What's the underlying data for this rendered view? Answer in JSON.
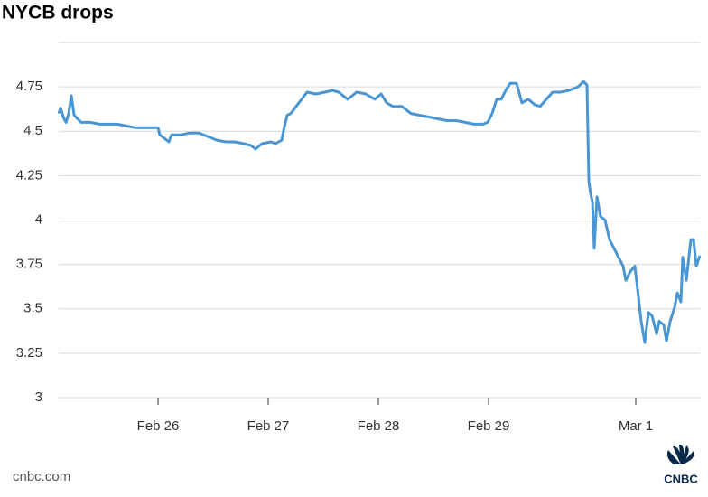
{
  "chart_data": {
    "type": "line",
    "title": "NYCB drops",
    "source": "cnbc.com",
    "logo": "CNBC",
    "x": [
      0.098,
      0.115,
      0.139,
      0.164,
      0.189,
      0.213,
      0.238,
      0.27,
      0.303,
      0.385,
      0.467,
      0.549,
      0.631,
      0.713,
      0.795,
      0.877,
      0.959,
      1.0,
      1.016,
      1.057,
      1.098,
      1.123,
      1.205,
      1.287,
      1.369,
      1.451,
      1.533,
      1.615,
      1.697,
      1.779,
      1.844,
      1.885,
      1.943,
      2.025,
      2.066,
      2.123,
      2.148,
      2.172,
      2.205,
      2.254,
      2.303,
      2.352,
      2.434,
      2.516,
      2.582,
      2.639,
      2.721,
      2.803,
      2.885,
      2.967,
      3.025,
      3.074,
      3.131,
      3.213,
      3.295,
      3.377,
      3.459,
      3.541,
      3.623,
      3.705,
      3.787,
      3.869,
      3.951,
      3.992,
      4.033,
      4.074,
      4.115,
      4.156,
      4.197,
      4.254,
      4.303,
      4.361,
      4.418,
      4.467,
      4.525,
      4.582,
      4.648,
      4.73,
      4.811,
      4.861,
      4.893,
      4.91,
      4.926,
      4.943,
      4.959,
      4.984,
      5.016,
      5.057,
      5.098,
      5.139,
      5.18,
      5.221,
      5.246,
      5.287,
      5.328,
      5.352,
      5.385,
      5.418,
      5.451,
      5.484,
      5.525,
      5.549,
      5.59,
      5.615,
      5.648,
      5.689,
      5.713,
      5.746,
      5.762,
      5.795,
      5.836,
      5.861,
      5.885,
      5.918
    ],
    "series": [
      {
        "name": "NYCB",
        "color": "#4a96d2",
        "values": [
          4.6,
          4.63,
          4.58,
          4.55,
          4.6,
          4.7,
          4.59,
          4.57,
          4.55,
          4.55,
          4.54,
          4.54,
          4.54,
          4.53,
          4.52,
          4.52,
          4.52,
          4.52,
          4.48,
          4.46,
          4.44,
          4.48,
          4.48,
          4.49,
          4.49,
          4.47,
          4.45,
          4.44,
          4.44,
          4.43,
          4.42,
          4.4,
          4.43,
          4.44,
          4.43,
          4.45,
          4.53,
          4.59,
          4.6,
          4.64,
          4.68,
          4.72,
          4.71,
          4.72,
          4.73,
          4.72,
          4.68,
          4.72,
          4.71,
          4.68,
          4.71,
          4.66,
          4.64,
          4.64,
          4.6,
          4.59,
          4.58,
          4.57,
          4.56,
          4.56,
          4.55,
          4.54,
          4.54,
          4.55,
          4.6,
          4.68,
          4.68,
          4.73,
          4.77,
          4.77,
          4.66,
          4.68,
          4.65,
          4.64,
          4.68,
          4.72,
          4.72,
          4.73,
          4.75,
          4.78,
          4.76,
          4.22,
          4.15,
          4.1,
          3.84,
          4.13,
          4.02,
          4.0,
          3.89,
          3.84,
          3.79,
          3.74,
          3.66,
          3.71,
          3.74,
          3.61,
          3.43,
          3.31,
          3.48,
          3.46,
          3.36,
          3.43,
          3.41,
          3.32,
          3.43,
          3.51,
          3.59,
          3.54,
          3.79,
          3.66,
          3.89,
          3.89,
          3.74,
          3.8
        ]
      }
    ],
    "xlim": [
      0.098,
      5.918
    ],
    "xticks": [
      {
        "value": 1,
        "label": "Feb 26"
      },
      {
        "value": 2,
        "label": "Feb 27"
      },
      {
        "value": 3,
        "label": "Feb 28"
      },
      {
        "value": 4,
        "label": "Feb 29"
      },
      {
        "value": 5.336,
        "label": "Mar 1"
      }
    ],
    "ylim": [
      3,
      5
    ],
    "yticks": [
      3,
      3.25,
      3.5,
      3.75,
      4,
      4.25,
      4.5,
      4.75
    ],
    "grid": true
  }
}
